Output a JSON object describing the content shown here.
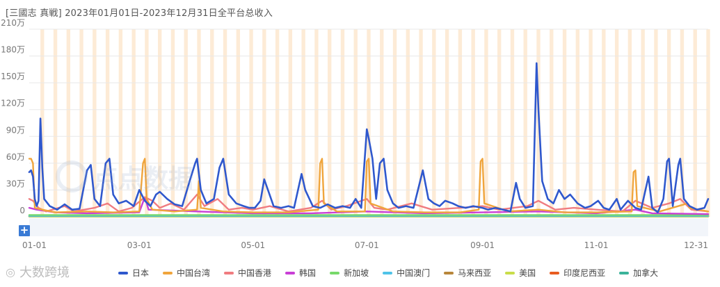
{
  "title": "[三國志 真戦]  2023年01月01日-2023年12月31日全平台总收入",
  "watermark": "大数跨境",
  "center_watermark": "点点数据",
  "zoom_button": "+",
  "colors": {
    "日本": "#2f58cd",
    "中国台湾": "#f0a53c",
    "中国香港": "#f07c80",
    "韩国": "#c93fd6",
    "新加坡": "#77d96a",
    "中国澳门": "#4fc3e8",
    "马来西亚": "#b8863b",
    "美国": "#c9dd4a",
    "印度尼西亚": "#e85c20",
    "加拿大": "#3bb39a",
    "stripe": "#fdebd6",
    "grid": "#e8e8e8"
  },
  "chart_data": {
    "type": "line",
    "title": "[三國志 真戦]  2023年01月01日-2023年12月31日全平台总收入",
    "x_range": [
      "2023-01-01",
      "2023-12-31"
    ],
    "x_ticks": [
      "01-01",
      "03-01",
      "05-01",
      "07-01",
      "09-01",
      "11-01",
      "12-31"
    ],
    "y_ticks": [
      "0",
      "30万",
      "60万",
      "90万",
      "120万",
      "150万",
      "180万",
      "210万"
    ],
    "ylim": [
      0,
      210
    ],
    "y_unit": "万",
    "legend_position": "bottom",
    "grid": true,
    "series": [
      {
        "name": "日本",
        "points": [
          [
            "2023-01-01",
            50
          ],
          [
            "2023-01-02",
            52
          ],
          [
            "2023-01-03",
            45
          ],
          [
            "2023-01-04",
            20
          ],
          [
            "2023-01-05",
            12
          ],
          [
            "2023-01-06",
            18
          ],
          [
            "2023-01-07",
            110
          ],
          [
            "2023-01-08",
            55
          ],
          [
            "2023-01-09",
            20
          ],
          [
            "2023-01-12",
            12
          ],
          [
            "2023-01-16",
            8
          ],
          [
            "2023-01-20",
            14
          ],
          [
            "2023-01-24",
            8
          ],
          [
            "2023-01-28",
            9
          ],
          [
            "2023-02-01",
            52
          ],
          [
            "2023-02-03",
            58
          ],
          [
            "2023-02-05",
            20
          ],
          [
            "2023-02-08",
            12
          ],
          [
            "2023-02-11",
            60
          ],
          [
            "2023-02-13",
            65
          ],
          [
            "2023-02-15",
            25
          ],
          [
            "2023-02-18",
            15
          ],
          [
            "2023-02-22",
            18
          ],
          [
            "2023-02-26",
            12
          ],
          [
            "2023-03-01",
            30
          ],
          [
            "2023-03-04",
            18
          ],
          [
            "2023-03-07",
            12
          ],
          [
            "2023-03-10",
            25
          ],
          [
            "2023-03-12",
            28
          ],
          [
            "2023-03-16",
            20
          ],
          [
            "2023-03-20",
            14
          ],
          [
            "2023-03-24",
            12
          ],
          [
            "2023-03-28",
            40
          ],
          [
            "2023-03-31",
            60
          ],
          [
            "2023-04-01",
            65
          ],
          [
            "2023-04-03",
            30
          ],
          [
            "2023-04-06",
            15
          ],
          [
            "2023-04-10",
            20
          ],
          [
            "2023-04-13",
            55
          ],
          [
            "2023-04-15",
            65
          ],
          [
            "2023-04-18",
            25
          ],
          [
            "2023-04-22",
            15
          ],
          [
            "2023-04-26",
            12
          ],
          [
            "2023-04-29",
            10
          ],
          [
            "2023-05-02",
            10
          ],
          [
            "2023-05-05",
            18
          ],
          [
            "2023-05-07",
            42
          ],
          [
            "2023-05-09",
            30
          ],
          [
            "2023-05-12",
            12
          ],
          [
            "2023-05-16",
            10
          ],
          [
            "2023-05-20",
            12
          ],
          [
            "2023-05-23",
            10
          ],
          [
            "2023-05-27",
            48
          ],
          [
            "2023-05-29",
            30
          ],
          [
            "2023-06-02",
            12
          ],
          [
            "2023-06-06",
            10
          ],
          [
            "2023-06-10",
            14
          ],
          [
            "2023-06-14",
            10
          ],
          [
            "2023-06-18",
            12
          ],
          [
            "2023-06-22",
            10
          ],
          [
            "2023-06-25",
            20
          ],
          [
            "2023-06-28",
            10
          ],
          [
            "2023-07-01",
            98
          ],
          [
            "2023-07-02",
            88
          ],
          [
            "2023-07-04",
            65
          ],
          [
            "2023-07-06",
            20
          ],
          [
            "2023-07-08",
            60
          ],
          [
            "2023-07-10",
            65
          ],
          [
            "2023-07-12",
            30
          ],
          [
            "2023-07-15",
            15
          ],
          [
            "2023-07-18",
            10
          ],
          [
            "2023-07-22",
            12
          ],
          [
            "2023-07-26",
            10
          ],
          [
            "2023-07-29",
            35
          ],
          [
            "2023-07-31",
            52
          ],
          [
            "2023-08-03",
            20
          ],
          [
            "2023-08-06",
            15
          ],
          [
            "2023-08-09",
            12
          ],
          [
            "2023-08-12",
            18
          ],
          [
            "2023-08-16",
            15
          ],
          [
            "2023-08-19",
            12
          ],
          [
            "2023-08-23",
            10
          ],
          [
            "2023-08-27",
            12
          ],
          [
            "2023-09-01",
            10
          ],
          [
            "2023-09-04",
            8
          ],
          [
            "2023-09-08",
            10
          ],
          [
            "2023-09-12",
            8
          ],
          [
            "2023-09-16",
            6
          ],
          [
            "2023-09-19",
            38
          ],
          [
            "2023-09-21",
            20
          ],
          [
            "2023-09-24",
            10
          ],
          [
            "2023-09-28",
            12
          ],
          [
            "2023-09-30",
            172
          ],
          [
            "2023-10-01",
            120
          ],
          [
            "2023-10-03",
            40
          ],
          [
            "2023-10-06",
            20
          ],
          [
            "2023-10-09",
            15
          ],
          [
            "2023-10-12",
            30
          ],
          [
            "2023-10-15",
            20
          ],
          [
            "2023-10-18",
            25
          ],
          [
            "2023-10-22",
            15
          ],
          [
            "2023-10-26",
            10
          ],
          [
            "2023-10-29",
            12
          ],
          [
            "2023-11-02",
            18
          ],
          [
            "2023-11-05",
            10
          ],
          [
            "2023-11-08",
            8
          ],
          [
            "2023-11-12",
            20
          ],
          [
            "2023-11-14",
            8
          ],
          [
            "2023-11-18",
            18
          ],
          [
            "2023-11-22",
            10
          ],
          [
            "2023-11-25",
            8
          ],
          [
            "2023-11-29",
            45
          ],
          [
            "2023-12-01",
            10
          ],
          [
            "2023-12-04",
            5
          ],
          [
            "2023-12-07",
            20
          ],
          [
            "2023-12-09",
            62
          ],
          [
            "2023-12-10",
            65
          ],
          [
            "2023-12-12",
            12
          ],
          [
            "2023-12-15",
            58
          ],
          [
            "2023-12-16",
            65
          ],
          [
            "2023-12-18",
            20
          ],
          [
            "2023-12-21",
            12
          ],
          [
            "2023-12-25",
            8
          ],
          [
            "2023-12-29",
            10
          ],
          [
            "2023-12-31",
            20
          ]
        ]
      },
      {
        "name": "中国台湾",
        "points": [
          [
            "2023-01-01",
            65
          ],
          [
            "2023-01-02",
            65
          ],
          [
            "2023-01-03",
            60
          ],
          [
            "2023-01-04",
            10
          ],
          [
            "2023-01-08",
            8
          ],
          [
            "2023-01-15",
            5
          ],
          [
            "2023-02-01",
            6
          ],
          [
            "2023-02-15",
            5
          ],
          [
            "2023-03-01",
            6
          ],
          [
            "2023-03-03",
            60
          ],
          [
            "2023-03-04",
            65
          ],
          [
            "2023-03-05",
            20
          ],
          [
            "2023-03-08",
            8
          ],
          [
            "2023-03-20",
            6
          ],
          [
            "2023-04-01",
            8
          ],
          [
            "2023-04-02",
            40
          ],
          [
            "2023-04-03",
            10
          ],
          [
            "2023-04-15",
            6
          ],
          [
            "2023-05-01",
            5
          ],
          [
            "2023-05-20",
            5
          ],
          [
            "2023-06-05",
            8
          ],
          [
            "2023-06-06",
            60
          ],
          [
            "2023-06-07",
            65
          ],
          [
            "2023-06-08",
            15
          ],
          [
            "2023-06-15",
            6
          ],
          [
            "2023-06-30",
            6
          ],
          [
            "2023-07-01",
            62
          ],
          [
            "2023-07-02",
            65
          ],
          [
            "2023-07-03",
            15
          ],
          [
            "2023-07-15",
            6
          ],
          [
            "2023-08-01",
            5
          ],
          [
            "2023-08-20",
            5
          ],
          [
            "2023-08-30",
            8
          ],
          [
            "2023-08-31",
            62
          ],
          [
            "2023-09-01",
            65
          ],
          [
            "2023-09-02",
            15
          ],
          [
            "2023-09-15",
            6
          ],
          [
            "2023-10-01",
            8
          ],
          [
            "2023-10-15",
            5
          ],
          [
            "2023-11-01",
            5
          ],
          [
            "2023-11-20",
            6
          ],
          [
            "2023-11-21",
            50
          ],
          [
            "2023-11-22",
            52
          ],
          [
            "2023-11-23",
            12
          ],
          [
            "2023-12-05",
            6
          ],
          [
            "2023-12-20",
            15
          ],
          [
            "2023-12-21",
            10
          ],
          [
            "2023-12-31",
            6
          ]
        ]
      },
      {
        "name": "中国香港",
        "points": [
          [
            "2023-01-01",
            20
          ],
          [
            "2023-01-03",
            18
          ],
          [
            "2023-01-06",
            10
          ],
          [
            "2023-01-10",
            6
          ],
          [
            "2023-01-20",
            12
          ],
          [
            "2023-01-25",
            6
          ],
          [
            "2023-02-05",
            10
          ],
          [
            "2023-02-12",
            15
          ],
          [
            "2023-02-18",
            6
          ],
          [
            "2023-02-25",
            10
          ],
          [
            "2023-03-04",
            22
          ],
          [
            "2023-03-08",
            18
          ],
          [
            "2023-03-12",
            10
          ],
          [
            "2023-03-18",
            15
          ],
          [
            "2023-03-25",
            8
          ],
          [
            "2023-04-01",
            25
          ],
          [
            "2023-04-05",
            12
          ],
          [
            "2023-04-12",
            20
          ],
          [
            "2023-04-18",
            8
          ],
          [
            "2023-04-25",
            10
          ],
          [
            "2023-05-01",
            8
          ],
          [
            "2023-05-10",
            12
          ],
          [
            "2023-05-20",
            6
          ],
          [
            "2023-06-01",
            10
          ],
          [
            "2023-06-07",
            18
          ],
          [
            "2023-06-12",
            8
          ],
          [
            "2023-06-20",
            12
          ],
          [
            "2023-07-01",
            20
          ],
          [
            "2023-07-05",
            10
          ],
          [
            "2023-07-12",
            8
          ],
          [
            "2023-07-25",
            15
          ],
          [
            "2023-08-05",
            8
          ],
          [
            "2023-08-20",
            10
          ],
          [
            "2023-09-01",
            12
          ],
          [
            "2023-09-10",
            8
          ],
          [
            "2023-09-25",
            12
          ],
          [
            "2023-10-01",
            18
          ],
          [
            "2023-10-10",
            8
          ],
          [
            "2023-10-20",
            10
          ],
          [
            "2023-11-01",
            8
          ],
          [
            "2023-11-15",
            6
          ],
          [
            "2023-11-22",
            18
          ],
          [
            "2023-12-01",
            10
          ],
          [
            "2023-12-10",
            15
          ],
          [
            "2023-12-16",
            20
          ],
          [
            "2023-12-22",
            8
          ],
          [
            "2023-12-31",
            6
          ]
        ]
      },
      {
        "name": "韩国",
        "points": [
          [
            "2023-01-01",
            10
          ],
          [
            "2023-01-05",
            8
          ],
          [
            "2023-01-15",
            5
          ],
          [
            "2023-02-01",
            4
          ],
          [
            "2023-03-01",
            5
          ],
          [
            "2023-03-04",
            22
          ],
          [
            "2023-03-06",
            8
          ],
          [
            "2023-04-01",
            6
          ],
          [
            "2023-05-01",
            4
          ],
          [
            "2023-06-01",
            4
          ],
          [
            "2023-07-01",
            6
          ],
          [
            "2023-08-01",
            4
          ],
          [
            "2023-09-01",
            5
          ],
          [
            "2023-10-01",
            6
          ],
          [
            "2023-11-01",
            4
          ],
          [
            "2023-11-22",
            8
          ],
          [
            "2023-12-01",
            4
          ],
          [
            "2023-12-31",
            3
          ]
        ]
      },
      {
        "name": "新加坡",
        "points": [
          [
            "2023-01-01",
            2
          ],
          [
            "2023-03-01",
            2
          ],
          [
            "2023-06-01",
            2
          ],
          [
            "2023-09-01",
            2
          ],
          [
            "2023-12-31",
            2
          ]
        ]
      },
      {
        "name": "中国澳门",
        "points": [
          [
            "2023-01-01",
            1
          ],
          [
            "2023-06-01",
            1
          ],
          [
            "2023-12-31",
            1
          ]
        ]
      },
      {
        "name": "马来西亚",
        "points": [
          [
            "2023-01-01",
            1
          ],
          [
            "2023-06-01",
            1
          ],
          [
            "2023-12-31",
            1
          ]
        ]
      },
      {
        "name": "美国",
        "points": [
          [
            "2023-01-01",
            0.5
          ],
          [
            "2023-12-31",
            0.5
          ]
        ]
      },
      {
        "name": "印度尼西亚",
        "points": [
          [
            "2023-01-01",
            0.5
          ],
          [
            "2023-12-31",
            0.5
          ]
        ]
      },
      {
        "name": "加拿大",
        "points": [
          [
            "2023-01-01",
            0.3
          ],
          [
            "2023-12-31",
            0.3
          ]
        ]
      }
    ]
  }
}
